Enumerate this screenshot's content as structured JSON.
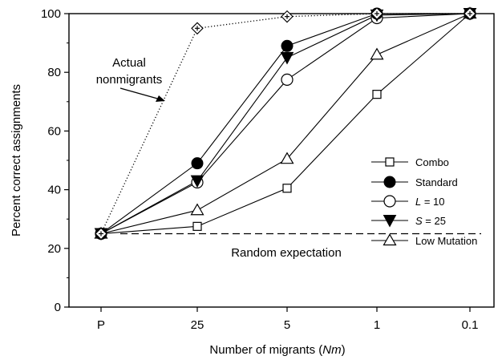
{
  "chart_data": {
    "type": "line",
    "categories": [
      "P",
      "25",
      "5",
      "1",
      "0.1"
    ],
    "ylabel": "Percent correct assignments",
    "xlabel_parts": [
      "Number of migrants (",
      "Nm",
      ")"
    ],
    "ylim": [
      0,
      100
    ],
    "yticks": [
      0,
      20,
      40,
      60,
      80,
      100
    ],
    "grid": false,
    "legend_position": "right",
    "series": [
      {
        "name": "Actual nonmigrants",
        "marker": "diamond-plus",
        "line": "dotted",
        "values": [
          25,
          95,
          99,
          100,
          100
        ]
      },
      {
        "name": "Combo",
        "marker": "square-open",
        "line": "solid",
        "values": [
          25,
          27.5,
          40.5,
          72.5,
          100
        ]
      },
      {
        "name": "Standard",
        "marker": "circle-filled",
        "line": "solid",
        "values": [
          25,
          49,
          89,
          100,
          100
        ]
      },
      {
        "name": "L = 10",
        "name_parts": [
          "L",
          " = 10"
        ],
        "marker": "circle-open",
        "line": "solid",
        "values": [
          25,
          42.5,
          77.5,
          98.5,
          100
        ]
      },
      {
        "name": "S = 25",
        "name_parts": [
          "S",
          " = 25"
        ],
        "marker": "triangle-down-filled",
        "line": "solid",
        "values": [
          25,
          43,
          85,
          99.5,
          100
        ]
      },
      {
        "name": "Low Mutation",
        "marker": "triangle-up-open",
        "line": "solid",
        "values": [
          25,
          33,
          50.5,
          86,
          100
        ]
      }
    ],
    "reference_line": {
      "label": "Random expectation",
      "value": 25
    },
    "annotation": {
      "lines": [
        "Actual",
        "nonmigrants"
      ]
    }
  }
}
